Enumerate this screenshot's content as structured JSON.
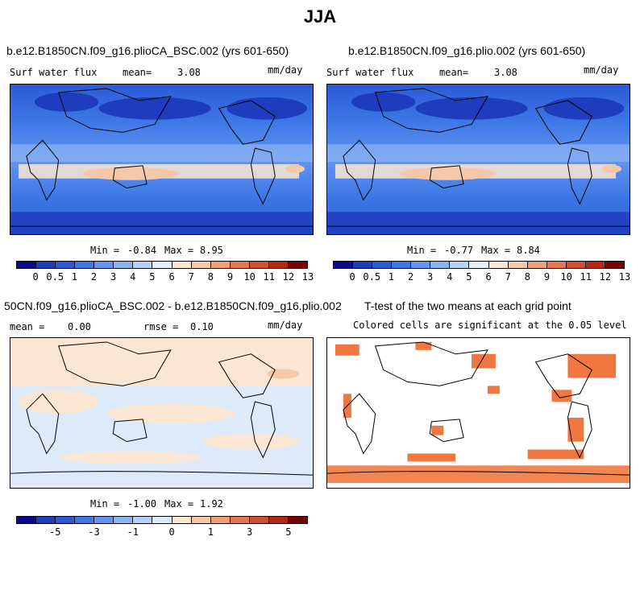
{
  "figure_title": "JJA",
  "panels": [
    {
      "title": "b.e12.B1850CN.f09_g16.plioCA_BSC.002 (yrs 601-650)",
      "variable": "Surf water flux",
      "stat1_label": "mean=",
      "stat1_value": "3.08",
      "units": "mm/day",
      "min_label": "Min =",
      "min_value": "-0.84",
      "max_label": "Max =",
      "max_value": "8.95"
    },
    {
      "title": "b.e12.B1850CN.f09_g16.plio.002 (yrs 601-650)",
      "variable": "Surf water flux",
      "stat1_label": "mean=",
      "stat1_value": "3.08",
      "units": "mm/day",
      "min_label": "Min =",
      "min_value": "-0.77",
      "max_label": "Max =",
      "max_value": "8.84"
    },
    {
      "title": "50CN.f09_g16.plioCA_BSC.002 - b.e12.B1850CN.f09_g16.plio.002",
      "stat1_label": "mean =",
      "stat1_value": "0.00",
      "stat2_label": "rmse =",
      "stat2_value": "0.10",
      "units": "mm/day",
      "min_label": "Min =",
      "min_value": "-1.00",
      "max_label": "Max =",
      "max_value": "1.92"
    },
    {
      "title": "T-test of the two means at each grid point",
      "subtitle": "Colored cells are significant at the 0.05 level"
    }
  ],
  "colorbar_abs": {
    "ticks": [
      "0",
      "0.5",
      "1",
      "2",
      "3",
      "4",
      "5",
      "6",
      "7",
      "8",
      "9",
      "10",
      "11",
      "12",
      "13"
    ],
    "colors": [
      "#0a0a8c",
      "#1e3cbe",
      "#2d5ad7",
      "#3c78e6",
      "#6496f0",
      "#8cb4f5",
      "#b4d2fa",
      "#e6f0fa",
      "#fae6d2",
      "#f5c8aa",
      "#f0a078",
      "#e67850",
      "#d25032",
      "#b42814",
      "#780000"
    ]
  },
  "colorbar_diff": {
    "ticks": [
      "-5",
      "-3",
      "-1",
      "0",
      "1",
      "3",
      "5"
    ],
    "colors": [
      "#0a0a8c",
      "#1e3cbe",
      "#2d5ad7",
      "#3c78e6",
      "#6496f0",
      "#8cb4f5",
      "#b4d2fa",
      "#dceafa",
      "#fae6d2",
      "#f5c8aa",
      "#f0a078",
      "#e67850",
      "#d25032",
      "#b42814",
      "#780000"
    ]
  },
  "chart_data": [
    {
      "type": "heatmap",
      "title": "b.e12.B1850CN.f09_g16.plioCA_BSC.002 (yrs 601-650)",
      "variable": "Surf water flux",
      "units": "mm/day",
      "mean": 3.08,
      "min": -0.84,
      "max": 8.95,
      "colorbar_levels": [
        0,
        0.5,
        1,
        2,
        3,
        4,
        5,
        6,
        7,
        8,
        9,
        10,
        11,
        12,
        13
      ]
    },
    {
      "type": "heatmap",
      "title": "b.e12.B1850CN.f09_g16.plio.002 (yrs 601-650)",
      "variable": "Surf water flux",
      "units": "mm/day",
      "mean": 3.08,
      "min": -0.77,
      "max": 8.84,
      "colorbar_levels": [
        0,
        0.5,
        1,
        2,
        3,
        4,
        5,
        6,
        7,
        8,
        9,
        10,
        11,
        12,
        13
      ]
    },
    {
      "type": "heatmap",
      "title": "50CN.f09_g16.plioCA_BSC.002 - b.e12.B1850CN.f09_g16.plio.002",
      "units": "mm/day",
      "mean": 0.0,
      "rmse": 0.1,
      "min": -1.0,
      "max": 1.92,
      "colorbar_levels": [
        -5,
        -3,
        -1,
        0,
        1,
        3,
        5
      ]
    },
    {
      "type": "heatmap",
      "title": "T-test of the two means at each grid point",
      "subtitle": "Colored cells are significant at the 0.05 level",
      "significance_level": 0.05
    }
  ]
}
